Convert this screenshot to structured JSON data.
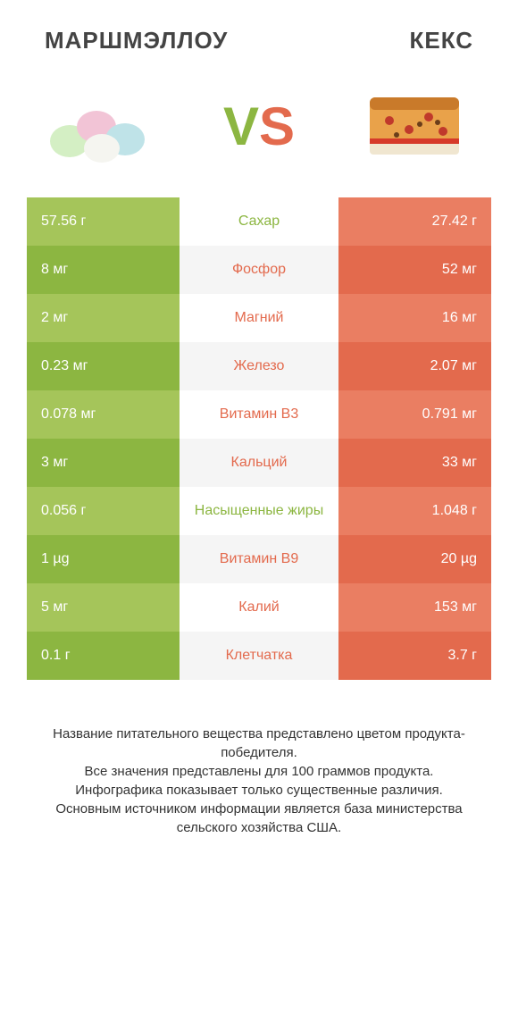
{
  "header": {
    "left_title": "МАРШМЭЛЛОУ",
    "right_title": "КЕКС"
  },
  "vs": {
    "v": "V",
    "s": "S"
  },
  "colors": {
    "green_light": "#a5c55a",
    "green_dark": "#8cb641",
    "orange_light": "#ea7e62",
    "orange_dark": "#e36a4d",
    "mid_even": "#ffffff",
    "mid_odd": "#f5f5f5",
    "label_green": "#8cb641",
    "label_orange": "#e36a4d"
  },
  "rows": [
    {
      "left": "57.56 г",
      "label": "Сахар",
      "right": "27.42 г",
      "winner": "left"
    },
    {
      "left": "8 мг",
      "label": "Фосфор",
      "right": "52 мг",
      "winner": "right"
    },
    {
      "left": "2 мг",
      "label": "Магний",
      "right": "16 мг",
      "winner": "right"
    },
    {
      "left": "0.23 мг",
      "label": "Железо",
      "right": "2.07 мг",
      "winner": "right"
    },
    {
      "left": "0.078 мг",
      "label": "Витамин B3",
      "right": "0.791 мг",
      "winner": "right"
    },
    {
      "left": "3 мг",
      "label": "Кальций",
      "right": "33 мг",
      "winner": "right"
    },
    {
      "left": "0.056 г",
      "label": "Насыщенные жиры",
      "right": "1.048 г",
      "winner": "left"
    },
    {
      "left": "1 µg",
      "label": "Витамин B9",
      "right": "20 µg",
      "winner": "right"
    },
    {
      "left": "5 мг",
      "label": "Калий",
      "right": "153 мг",
      "winner": "right"
    },
    {
      "left": "0.1 г",
      "label": "Клетчатка",
      "right": "3.7 г",
      "winner": "right"
    }
  ],
  "footnote": {
    "l1": "Название питательного вещества представлено цветом продукта-победителя.",
    "l2": "Все значения представлены для 100 граммов продукта.",
    "l3": "Инфографика показывает только существенные различия.",
    "l4": "Основным источником информации является база министерства сельского хозяйства США."
  }
}
